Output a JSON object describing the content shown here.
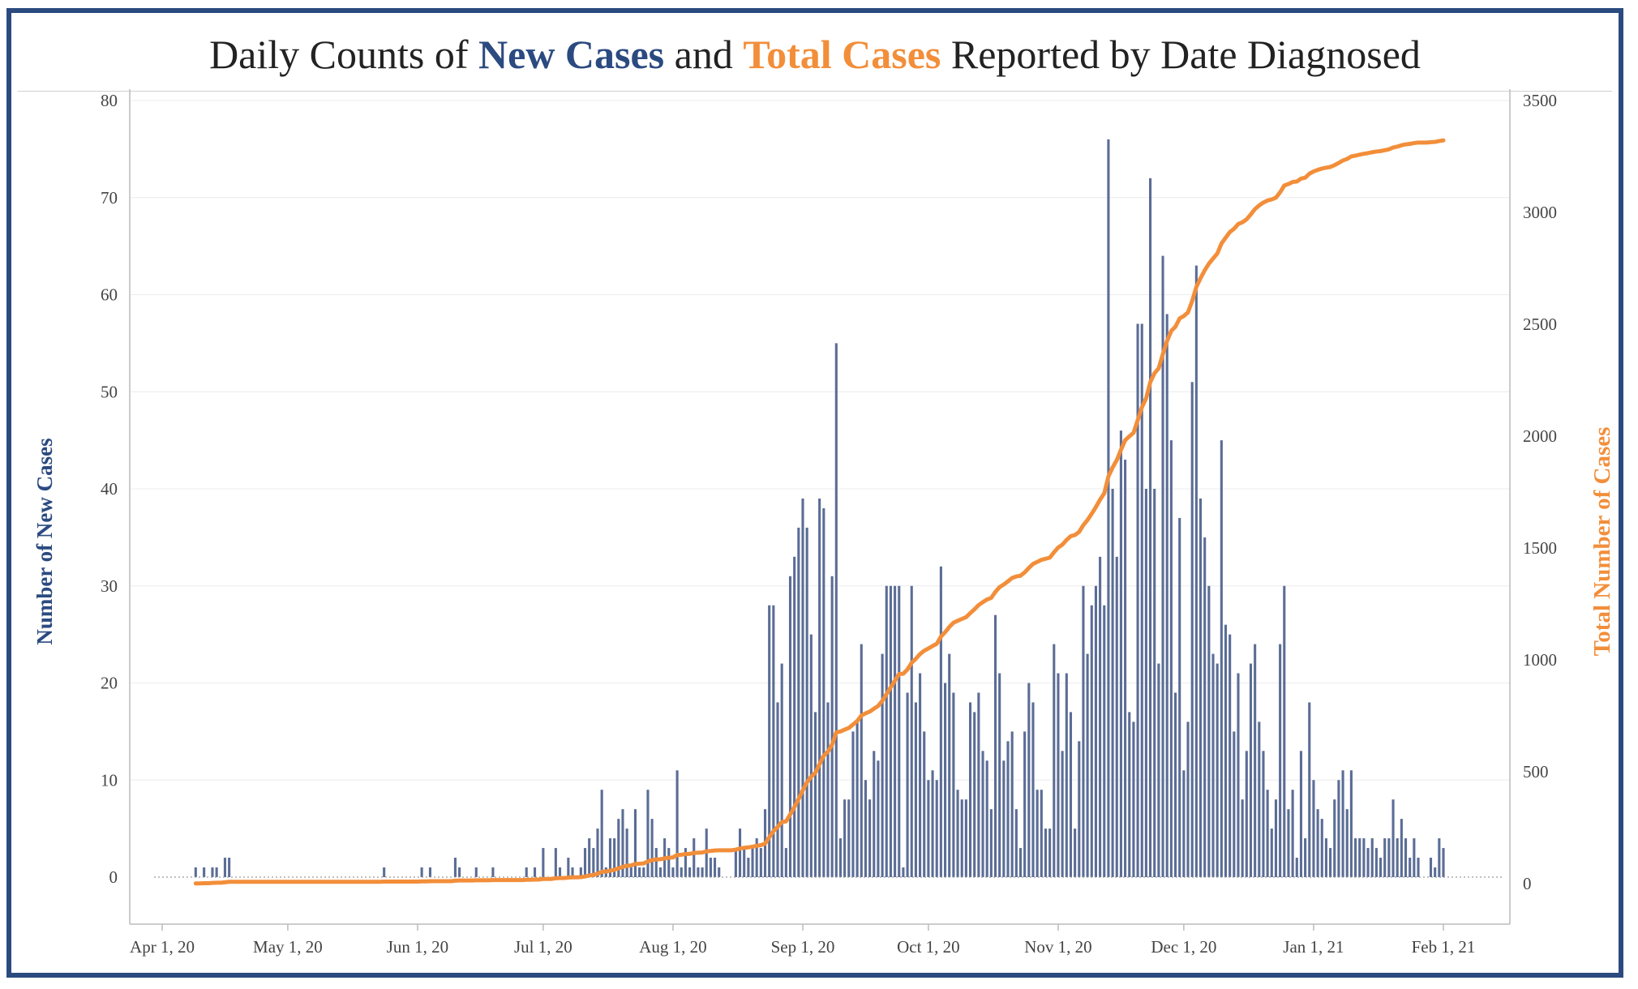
{
  "title": {
    "prefix": "Daily Counts of ",
    "new_cases": "New Cases",
    "and": " and ",
    "total_cases": "Total Cases",
    "suffix": " Reported by Date Diagnosed"
  },
  "colors": {
    "bars": "#5b6d96",
    "line": "#f28e3a",
    "accent_blue": "#2b4a80",
    "frame": "#2b4a80",
    "grid": "#ececec"
  },
  "chart_data": {
    "type": "bar",
    "title": "Daily Counts of New Cases and Total Cases Reported by Date Diagnosed",
    "ylabel": "Number of New Cases",
    "y2label": "Total Number of Cases",
    "ylim": [
      -5,
      80
    ],
    "y2lim": [
      -200,
      3500
    ],
    "yticks": [
      0,
      10,
      20,
      30,
      40,
      50,
      60,
      70,
      80
    ],
    "y2ticks": [
      0,
      500,
      1000,
      1500,
      2000,
      2500,
      3000,
      3500
    ],
    "xticks": [
      "Apr 1, 20",
      "May 1, 20",
      "Jun 1, 20",
      "Jul 1, 20",
      "Aug 1, 20",
      "Sep 1, 20",
      "Oct 1, 20",
      "Nov 1, 20",
      "Dec 1, 20",
      "Jan 1, 21",
      "Feb 1, 21"
    ],
    "start_date": "2020-04-09",
    "end_date": "2021-02-01",
    "grid": true,
    "series": [
      {
        "name": "New Cases",
        "type": "bar",
        "values_by_date": {
          "2020-04-09": 1,
          "2020-04-11": 1,
          "2020-04-13": 1,
          "2020-04-14": 1,
          "2020-04-16": 2,
          "2020-04-17": 2,
          "2020-05-24": 1,
          "2020-06-02": 1,
          "2020-06-04": 1,
          "2020-06-10": 2,
          "2020-06-11": 1,
          "2020-06-15": 1,
          "2020-06-19": 1,
          "2020-06-27": 1,
          "2020-06-29": 1,
          "2020-07-01": 3,
          "2020-07-04": 3,
          "2020-07-05": 1,
          "2020-07-07": 2,
          "2020-07-08": 1,
          "2020-07-10": 1,
          "2020-07-11": 3,
          "2020-07-12": 4,
          "2020-07-13": 3,
          "2020-07-14": 5,
          "2020-07-15": 9,
          "2020-07-16": 1,
          "2020-07-17": 4,
          "2020-07-18": 4,
          "2020-07-19": 6,
          "2020-07-20": 7,
          "2020-07-21": 5,
          "2020-07-22": 1,
          "2020-07-23": 7,
          "2020-07-24": 1,
          "2020-07-25": 1,
          "2020-07-26": 9,
          "2020-07-27": 6,
          "2020-07-28": 3,
          "2020-07-29": 1,
          "2020-07-30": 4,
          "2020-07-31": 3,
          "2020-08-01": 1,
          "2020-08-02": 11,
          "2020-08-03": 1,
          "2020-08-04": 3,
          "2020-08-05": 1,
          "2020-08-06": 4,
          "2020-08-07": 1,
          "2020-08-08": 1,
          "2020-08-09": 5,
          "2020-08-10": 2,
          "2020-08-11": 2,
          "2020-08-12": 1,
          "2020-08-16": 3,
          "2020-08-17": 5,
          "2020-08-18": 3,
          "2020-08-19": 2,
          "2020-08-20": 3,
          "2020-08-21": 4,
          "2020-08-22": 3,
          "2020-08-23": 7,
          "2020-08-24": 28,
          "2020-08-25": 28,
          "2020-08-26": 18,
          "2020-08-27": 22,
          "2020-08-28": 3,
          "2020-08-29": 31,
          "2020-08-30": 33,
          "2020-08-31": 36,
          "2020-09-01": 39,
          "2020-09-02": 36,
          "2020-09-03": 25,
          "2020-09-04": 17,
          "2020-09-05": 39,
          "2020-09-06": 38,
          "2020-09-07": 18,
          "2020-09-08": 31,
          "2020-09-09": 55,
          "2020-09-10": 4,
          "2020-09-11": 8,
          "2020-09-12": 8,
          "2020-09-13": 15,
          "2020-09-14": 16,
          "2020-09-15": 24,
          "2020-09-16": 10,
          "2020-09-17": 8,
          "2020-09-18": 13,
          "2020-09-19": 12,
          "2020-09-20": 23,
          "2020-09-21": 30,
          "2020-09-22": 30,
          "2020-09-23": 30,
          "2020-09-24": 30,
          "2020-09-25": 1,
          "2020-09-26": 19,
          "2020-09-27": 30,
          "2020-09-28": 18,
          "2020-09-29": 21,
          "2020-09-30": 15,
          "2020-10-01": 10,
          "2020-10-02": 11,
          "2020-10-03": 10,
          "2020-10-04": 32,
          "2020-10-05": 20,
          "2020-10-06": 23,
          "2020-10-07": 19,
          "2020-10-08": 9,
          "2020-10-09": 8,
          "2020-10-10": 8,
          "2020-10-11": 18,
          "2020-10-12": 17,
          "2020-10-13": 19,
          "2020-10-14": 13,
          "2020-10-15": 12,
          "2020-10-16": 7,
          "2020-10-17": 27,
          "2020-10-18": 21,
          "2020-10-19": 12,
          "2020-10-20": 14,
          "2020-10-21": 15,
          "2020-10-22": 7,
          "2020-10-23": 3,
          "2020-10-24": 15,
          "2020-10-25": 20,
          "2020-10-26": 18,
          "2020-10-27": 9,
          "2020-10-28": 9,
          "2020-10-29": 5,
          "2020-10-30": 5,
          "2020-10-31": 24,
          "2020-11-01": 21,
          "2020-11-02": 13,
          "2020-11-03": 21,
          "2020-11-04": 17,
          "2020-11-05": 5,
          "2020-11-06": 14,
          "2020-11-07": 30,
          "2020-11-08": 23,
          "2020-11-09": 28,
          "2020-11-10": 30,
          "2020-11-11": 33,
          "2020-11-12": 28,
          "2020-11-13": 76,
          "2020-11-14": 40,
          "2020-11-15": 33,
          "2020-11-16": 46,
          "2020-11-17": 43,
          "2020-11-18": 17,
          "2020-11-19": 16,
          "2020-11-20": 57,
          "2020-11-21": 57,
          "2020-11-22": 40,
          "2020-11-23": 72,
          "2020-11-24": 40,
          "2020-11-25": 22,
          "2020-11-26": 64,
          "2020-11-27": 58,
          "2020-11-28": 45,
          "2020-11-29": 19,
          "2020-11-30": 37,
          "2020-12-01": 11,
          "2020-12-02": 16,
          "2020-12-03": 51,
          "2020-12-04": 63,
          "2020-12-05": 39,
          "2020-12-06": 35,
          "2020-12-07": 30,
          "2020-12-08": 23,
          "2020-12-09": 22,
          "2020-12-10": 45,
          "2020-12-11": 26,
          "2020-12-12": 25,
          "2020-12-13": 15,
          "2020-12-14": 21,
          "2020-12-15": 8,
          "2020-12-16": 13,
          "2020-12-17": 22,
          "2020-12-18": 24,
          "2020-12-19": 16,
          "2020-12-20": 13,
          "2020-12-21": 9,
          "2020-12-22": 5,
          "2020-12-23": 8,
          "2020-12-24": 24,
          "2020-12-25": 30,
          "2020-12-26": 7,
          "2020-12-27": 9,
          "2020-12-28": 2,
          "2020-12-29": 13,
          "2020-12-30": 4,
          "2020-12-31": 18,
          "2021-01-01": 10,
          "2021-01-02": 7,
          "2021-01-03": 6,
          "2021-01-04": 4,
          "2021-01-05": 3,
          "2021-01-06": 8,
          "2021-01-07": 10,
          "2021-01-08": 11,
          "2021-01-09": 7,
          "2021-01-10": 11,
          "2021-01-11": 4,
          "2021-01-12": 4,
          "2021-01-13": 4,
          "2021-01-14": 3,
          "2021-01-15": 4,
          "2021-01-16": 3,
          "2021-01-17": 2,
          "2021-01-18": 4,
          "2021-01-19": 4,
          "2021-01-20": 8,
          "2021-01-21": 4,
          "2021-01-22": 6,
          "2021-01-23": 4,
          "2021-01-24": 2,
          "2021-01-25": 4,
          "2021-01-26": 2,
          "2021-01-29": 2,
          "2021-01-30": 1,
          "2021-01-31": 4,
          "2021-02-01": 3
        }
      },
      {
        "name": "Total Cases",
        "type": "line",
        "axis": "right",
        "cumulative_of": "New Cases"
      }
    ]
  }
}
